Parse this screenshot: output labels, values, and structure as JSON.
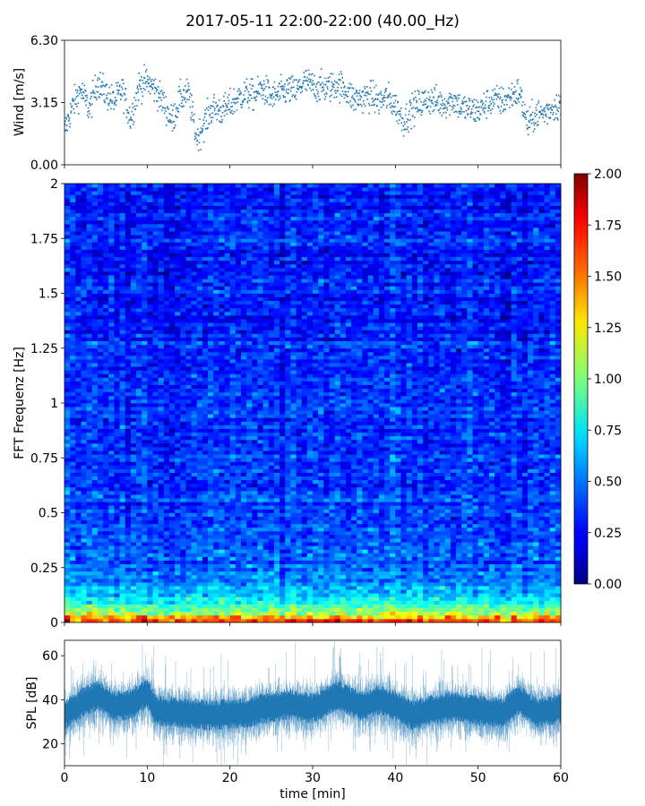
{
  "title": "2017-05-11 22:00-22:00 (40.00_Hz)",
  "chart_data": [
    {
      "type": "scatter",
      "ylabel": "Wind [m/s]",
      "xlim": [
        0,
        60
      ],
      "ylim": [
        0,
        6.3
      ],
      "yticks": [
        "0.00",
        "3.15",
        "6.30"
      ],
      "ytick_values": [
        0,
        3.15,
        6.3
      ],
      "color": "#1f77b4",
      "profile": [
        [
          0,
          1.7
        ],
        [
          1,
          3.0
        ],
        [
          2,
          3.8
        ],
        [
          3,
          2.8
        ],
        [
          4,
          4.2
        ],
        [
          5,
          3.6
        ],
        [
          6,
          3.2
        ],
        [
          7,
          3.8
        ],
        [
          8,
          2.3
        ],
        [
          9,
          4.0
        ],
        [
          10,
          4.2
        ],
        [
          11,
          3.8
        ],
        [
          12,
          3.1
        ],
        [
          13,
          2.2
        ],
        [
          14,
          3.4
        ],
        [
          15,
          3.6
        ],
        [
          16,
          1.3
        ],
        [
          17,
          2.2
        ],
        [
          18,
          2.9
        ],
        [
          19,
          2.7
        ],
        [
          20,
          3.0
        ],
        [
          21,
          3.4
        ],
        [
          22,
          3.6
        ],
        [
          23,
          3.5
        ],
        [
          24,
          3.9
        ],
        [
          25,
          3.4
        ],
        [
          26,
          3.6
        ],
        [
          27,
          3.8
        ],
        [
          28,
          3.7
        ],
        [
          29,
          4.2
        ],
        [
          30,
          4.0
        ],
        [
          31,
          3.9
        ],
        [
          32,
          3.9
        ],
        [
          33,
          4.1
        ],
        [
          34,
          3.8
        ],
        [
          35,
          3.3
        ],
        [
          36,
          3.4
        ],
        [
          37,
          3.5
        ],
        [
          38,
          3.2
        ],
        [
          39,
          3.4
        ],
        [
          40,
          3.0
        ],
        [
          41,
          2.2
        ],
        [
          42,
          2.8
        ],
        [
          43,
          3.1
        ],
        [
          44,
          3.3
        ],
        [
          45,
          3.2
        ],
        [
          46,
          3.1
        ],
        [
          47,
          3.3
        ],
        [
          48,
          2.9
        ],
        [
          49,
          2.8
        ],
        [
          50,
          2.7
        ],
        [
          51,
          3.1
        ],
        [
          52,
          3.3
        ],
        [
          53,
          3.2
        ],
        [
          54,
          3.5
        ],
        [
          55,
          3.7
        ],
        [
          56,
          2.0
        ],
        [
          57,
          2.6
        ],
        [
          58,
          2.6
        ],
        [
          59,
          2.9
        ],
        [
          60,
          3.1
        ]
      ]
    },
    {
      "type": "heatmap",
      "ylabel": "FFT Frequenz [Hz]",
      "xlim": [
        0,
        60
      ],
      "ylim": [
        0,
        2
      ],
      "yticks": [
        "0",
        "0.25",
        "0.5",
        "0.75",
        "1",
        "1.25",
        "1.5",
        "1.75",
        "2"
      ],
      "ytick_values": [
        0,
        0.25,
        0.5,
        0.75,
        1,
        1.25,
        1.5,
        1.75,
        2
      ],
      "colormap": "jet",
      "colorbar": {
        "range": [
          0,
          2
        ],
        "ticks": [
          "0.00",
          "0.25",
          "0.50",
          "0.75",
          "1.00",
          "1.25",
          "1.50",
          "1.75",
          "2.00"
        ],
        "tick_values": [
          0,
          0.25,
          0.5,
          0.75,
          1,
          1.25,
          1.5,
          1.75,
          2
        ]
      },
      "frequency_profile": [
        [
          0.0,
          1.85
        ],
        [
          0.02,
          1.45
        ],
        [
          0.05,
          1.0
        ],
        [
          0.1,
          0.75
        ],
        [
          0.15,
          0.6
        ],
        [
          0.25,
          0.45
        ],
        [
          0.5,
          0.38
        ],
        [
          1.0,
          0.33
        ],
        [
          1.5,
          0.3
        ],
        [
          2.0,
          0.28
        ]
      ]
    },
    {
      "type": "area",
      "ylabel": "SPL [dB]",
      "xlabel": "time [min]",
      "xlim": [
        0,
        60
      ],
      "ylim": [
        10,
        67
      ],
      "yticks": [
        "20",
        "40",
        "60"
      ],
      "ytick_values": [
        20,
        40,
        60
      ],
      "xticks": [
        "0",
        "10",
        "20",
        "30",
        "40",
        "50",
        "60"
      ],
      "xtick_values": [
        0,
        10,
        20,
        30,
        40,
        50,
        60
      ],
      "color": "#1f77b4",
      "profile": [
        [
          0,
          33
        ],
        [
          2,
          38
        ],
        [
          4,
          42
        ],
        [
          6,
          37
        ],
        [
          8,
          38
        ],
        [
          10,
          43
        ],
        [
          11,
          35
        ],
        [
          14,
          34
        ],
        [
          18,
          33
        ],
        [
          22,
          34
        ],
        [
          24,
          36
        ],
        [
          27,
          38
        ],
        [
          30,
          36
        ],
        [
          33,
          42
        ],
        [
          36,
          37
        ],
        [
          38,
          40
        ],
        [
          40,
          37
        ],
        [
          42,
          33
        ],
        [
          44,
          35
        ],
        [
          47,
          37
        ],
        [
          50,
          35
        ],
        [
          53,
          34
        ],
        [
          55,
          40
        ],
        [
          57,
          34
        ],
        [
          60,
          36
        ]
      ]
    }
  ]
}
